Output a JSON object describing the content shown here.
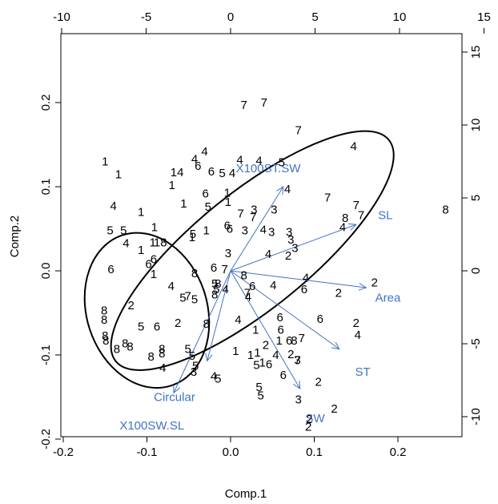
{
  "chart_data": {
    "type": "scatter",
    "subtype": "pca-biplot",
    "xlabel": "Comp.1",
    "ylabel": "Comp.2",
    "xlim": [
      -0.2,
      0.25
    ],
    "ylim": [
      -0.2,
      0.28
    ],
    "x_ticks": [
      "-0.2",
      "-0.1",
      "0.0",
      "0.1",
      "0.2"
    ],
    "y_ticks": [
      "-0.2",
      "-0.1",
      "0.0",
      "0.1",
      "0.2"
    ],
    "top_axis": {
      "lim": [
        -12,
        17.5
      ],
      "ticks": [
        "-10",
        "-5",
        "0",
        "5",
        "10",
        "15"
      ]
    },
    "right_axis": {
      "lim": [
        -12,
        17.5
      ],
      "ticks": [
        "-10",
        "-5",
        "0",
        "5",
        "10",
        "15"
      ]
    },
    "point_color": "#000000",
    "vector_color": "#4472c4",
    "points": [
      {
        "label": "7",
        "x": 0.016,
        "y": 0.197
      },
      {
        "label": "7",
        "x": 0.04,
        "y": 0.2
      },
      {
        "label": "7",
        "x": 0.081,
        "y": 0.167
      },
      {
        "label": "4",
        "x": 0.147,
        "y": 0.148
      },
      {
        "label": "1",
        "x": -0.15,
        "y": 0.13
      },
      {
        "label": "4",
        "x": -0.031,
        "y": 0.142
      },
      {
        "label": "4",
        "x": -0.043,
        "y": 0.133
      },
      {
        "label": "4",
        "x": 0.011,
        "y": 0.132
      },
      {
        "label": "5",
        "x": 0.061,
        "y": 0.129
      },
      {
        "label": "4",
        "x": 0.034,
        "y": 0.131
      },
      {
        "label": "6",
        "x": -0.039,
        "y": 0.125
      },
      {
        "label": "6",
        "x": -0.023,
        "y": 0.118
      },
      {
        "label": "5",
        "x": -0.01,
        "y": 0.116
      },
      {
        "label": "4",
        "x": 0.002,
        "y": 0.116
      },
      {
        "label": "1",
        "x": -0.134,
        "y": 0.115
      },
      {
        "label": "14",
        "x": -0.064,
        "y": 0.117
      },
      {
        "label": "1",
        "x": -0.07,
        "y": 0.102
      },
      {
        "label": "6",
        "x": -0.03,
        "y": 0.092
      },
      {
        "label": "1",
        "x": -0.004,
        "y": 0.093
      },
      {
        "label": "4",
        "x": 0.068,
        "y": 0.097
      },
      {
        "label": "1",
        "x": -0.056,
        "y": 0.08
      },
      {
        "label": "5",
        "x": -0.027,
        "y": 0.076
      },
      {
        "label": "1",
        "x": -0.003,
        "y": 0.082
      },
      {
        "label": "4",
        "x": -0.14,
        "y": 0.077
      },
      {
        "label": "1",
        "x": -0.107,
        "y": 0.07
      },
      {
        "label": "7",
        "x": 0.116,
        "y": 0.087
      },
      {
        "label": "7",
        "x": 0.15,
        "y": 0.078
      },
      {
        "label": "7",
        "x": 0.156,
        "y": 0.066
      },
      {
        "label": "3",
        "x": 0.028,
        "y": 0.073
      },
      {
        "label": "7",
        "x": 0.012,
        "y": 0.068
      },
      {
        "label": "3",
        "x": 0.052,
        "y": 0.073
      },
      {
        "label": "7",
        "x": 0.027,
        "y": 0.064
      },
      {
        "label": "8",
        "x": 0.137,
        "y": 0.063
      },
      {
        "label": "4",
        "x": 0.134,
        "y": 0.052
      },
      {
        "label": "8",
        "x": 0.257,
        "y": 0.073
      },
      {
        "label": "5",
        "x": -0.144,
        "y": 0.048
      },
      {
        "label": "5",
        "x": -0.128,
        "y": 0.048
      },
      {
        "label": "1",
        "x": -0.091,
        "y": 0.052
      },
      {
        "label": "6",
        "x": -0.004,
        "y": 0.054
      },
      {
        "label": "6",
        "x": -0.001,
        "y": 0.05
      },
      {
        "label": "1",
        "x": -0.029,
        "y": 0.048
      },
      {
        "label": "3",
        "x": 0.017,
        "y": 0.048
      },
      {
        "label": "4",
        "x": 0.039,
        "y": 0.049
      },
      {
        "label": "3",
        "x": 0.049,
        "y": 0.046
      },
      {
        "label": "3",
        "x": 0.07,
        "y": 0.046
      },
      {
        "label": "4",
        "x": -0.125,
        "y": 0.033
      },
      {
        "label": "5",
        "x": -0.045,
        "y": 0.044
      },
      {
        "label": "1",
        "x": -0.046,
        "y": 0.04
      },
      {
        "label": "1",
        "x": -0.093,
        "y": 0.034
      },
      {
        "label": "18",
        "x": -0.084,
        "y": 0.034
      },
      {
        "label": "3",
        "x": 0.072,
        "y": 0.037
      },
      {
        "label": "3",
        "x": 0.077,
        "y": 0.027
      },
      {
        "label": "1",
        "x": -0.107,
        "y": 0.025
      },
      {
        "label": "3",
        "x": -0.003,
        "y": 0.021
      },
      {
        "label": "4",
        "x": 0.045,
        "y": 0.02
      },
      {
        "label": "2",
        "x": 0.069,
        "y": 0.018
      },
      {
        "label": "6",
        "x": -0.092,
        "y": 0.014
      },
      {
        "label": "6",
        "x": -0.098,
        "y": 0.008
      },
      {
        "label": "6",
        "x": -0.143,
        "y": 0.002
      },
      {
        "label": "1",
        "x": -0.092,
        "y": -0.004
      },
      {
        "label": "6",
        "x": -0.02,
        "y": 0.004
      },
      {
        "label": "7",
        "x": -0.007,
        "y": 0.002
      },
      {
        "label": "8",
        "x": -0.043,
        "y": -0.003
      },
      {
        "label": "8",
        "x": 0.016,
        "y": -0.005
      },
      {
        "label": "4",
        "x": -0.071,
        "y": -0.018
      },
      {
        "label": "5",
        "x": -0.019,
        "y": -0.015
      },
      {
        "label": "8",
        "x": -0.015,
        "y": -0.015
      },
      {
        "label": "4",
        "x": 0.09,
        "y": -0.008
      },
      {
        "label": "4",
        "x": 0.051,
        "y": -0.017
      },
      {
        "label": "6",
        "x": 0.088,
        "y": -0.022
      },
      {
        "label": "5",
        "x": -0.017,
        "y": -0.022
      },
      {
        "label": "4",
        "x": -0.006,
        "y": -0.022
      },
      {
        "label": "6",
        "x": 0.026,
        "y": -0.018
      },
      {
        "label": "7",
        "x": 0.02,
        "y": -0.026
      },
      {
        "label": "4",
        "x": 0.021,
        "y": -0.031
      },
      {
        "label": "5",
        "x": -0.057,
        "y": -0.032
      },
      {
        "label": "7",
        "x": -0.051,
        "y": -0.03
      },
      {
        "label": "5",
        "x": -0.043,
        "y": -0.034
      },
      {
        "label": "8",
        "x": -0.019,
        "y": -0.028
      },
      {
        "label": "2",
        "x": -0.119,
        "y": -0.041
      },
      {
        "label": "8",
        "x": -0.151,
        "y": -0.047
      },
      {
        "label": "8",
        "x": -0.151,
        "y": -0.058
      },
      {
        "label": "2",
        "x": 0.129,
        "y": -0.026
      },
      {
        "label": "2",
        "x": 0.172,
        "y": -0.014
      },
      {
        "label": "6",
        "x": 0.059,
        "y": -0.055
      },
      {
        "label": "6",
        "x": 0.107,
        "y": -0.057
      },
      {
        "label": "2",
        "x": 0.15,
        "y": -0.062
      },
      {
        "label": "4",
        "x": 0.152,
        "y": -0.076
      },
      {
        "label": "4",
        "x": 0.009,
        "y": -0.058
      },
      {
        "label": "5",
        "x": -0.107,
        "y": -0.066
      },
      {
        "label": "6",
        "x": -0.088,
        "y": -0.066
      },
      {
        "label": "2",
        "x": -0.063,
        "y": -0.062
      },
      {
        "label": "8",
        "x": -0.029,
        "y": -0.063
      },
      {
        "label": "1",
        "x": 0.03,
        "y": -0.07
      },
      {
        "label": "6",
        "x": 0.06,
        "y": -0.07
      },
      {
        "label": "8",
        "x": -0.15,
        "y": -0.077
      },
      {
        "label": "8",
        "x": -0.149,
        "y": -0.083
      },
      {
        "label": "8",
        "x": -0.126,
        "y": -0.086
      },
      {
        "label": "8",
        "x": -0.12,
        "y": -0.09
      },
      {
        "label": "8",
        "x": -0.136,
        "y": -0.093
      },
      {
        "label": "8",
        "x": -0.082,
        "y": -0.093
      },
      {
        "label": "8",
        "x": -0.082,
        "y": -0.098
      },
      {
        "label": "5",
        "x": -0.051,
        "y": -0.093
      },
      {
        "label": "8",
        "x": -0.095,
        "y": -0.102
      },
      {
        "label": "5",
        "x": -0.046,
        "y": -0.101
      },
      {
        "label": "1",
        "x": 0.058,
        "y": -0.083
      },
      {
        "label": "6",
        "x": 0.07,
        "y": -0.083
      },
      {
        "label": "7",
        "x": 0.085,
        "y": -0.08
      },
      {
        "label": "8",
        "x": 0.076,
        "y": -0.083
      },
      {
        "label": "2",
        "x": 0.042,
        "y": -0.088
      },
      {
        "label": "1",
        "x": 0.006,
        "y": -0.095
      },
      {
        "label": "1",
        "x": 0.024,
        "y": -0.1
      },
      {
        "label": "1",
        "x": 0.032,
        "y": -0.097
      },
      {
        "label": "4",
        "x": 0.054,
        "y": -0.1
      },
      {
        "label": "2",
        "x": 0.072,
        "y": -0.099
      },
      {
        "label": "7",
        "x": 0.08,
        "y": -0.106
      },
      {
        "label": "1",
        "x": 0.038,
        "y": -0.109
      },
      {
        "label": "6",
        "x": 0.046,
        "y": -0.111
      },
      {
        "label": "5",
        "x": 0.031,
        "y": -0.112
      },
      {
        "label": "3",
        "x": 0.08,
        "y": -0.106
      },
      {
        "label": "5",
        "x": -0.042,
        "y": -0.113
      },
      {
        "label": "4",
        "x": -0.081,
        "y": -0.115
      },
      {
        "label": "3",
        "x": -0.044,
        "y": -0.12
      },
      {
        "label": "6",
        "x": 0.063,
        "y": -0.124
      },
      {
        "label": "4",
        "x": -0.02,
        "y": -0.125
      },
      {
        "label": "5",
        "x": -0.015,
        "y": -0.128
      },
      {
        "label": "5",
        "x": 0.034,
        "y": -0.138
      },
      {
        "label": "5",
        "x": 0.036,
        "y": -0.148
      },
      {
        "label": "3",
        "x": 0.081,
        "y": -0.153
      },
      {
        "label": "2",
        "x": 0.105,
        "y": -0.132
      },
      {
        "label": "2",
        "x": 0.124,
        "y": -0.164
      },
      {
        "label": "2",
        "x": 0.094,
        "y": -0.176
      },
      {
        "label": "2",
        "x": 0.093,
        "y": -0.185
      }
    ],
    "vectors": [
      {
        "label": "X100ST.SW",
        "x": 0.063,
        "y": 0.1,
        "lx": 0.045,
        "ly": 0.122
      },
      {
        "label": "SL",
        "x": 0.15,
        "y": 0.055,
        "lx": 0.185,
        "ly": 0.066
      },
      {
        "label": "Area",
        "x": 0.162,
        "y": -0.02,
        "lx": 0.188,
        "ly": -0.032
      },
      {
        "label": "ST",
        "x": 0.13,
        "y": -0.093,
        "lx": 0.158,
        "ly": -0.12
      },
      {
        "label": "SW",
        "x": 0.083,
        "y": -0.14,
        "lx": 0.101,
        "ly": -0.175
      },
      {
        "label": "Circular",
        "x": -0.068,
        "y": -0.145,
        "lx": -0.067,
        "ly": -0.15
      },
      {
        "label": "X100SW.SL",
        "x": -0.028,
        "y": -0.107,
        "lx": -0.094,
        "ly": -0.184
      }
    ],
    "ellipses": [
      {
        "cx": 0.026,
        "cy": 0.024,
        "rx": 0.21,
        "ry": 0.069,
        "angle_deg": -39
      },
      {
        "cx": -0.1,
        "cy": -0.047,
        "rx": 0.072,
        "ry": 0.094,
        "angle_deg": -18
      }
    ]
  }
}
